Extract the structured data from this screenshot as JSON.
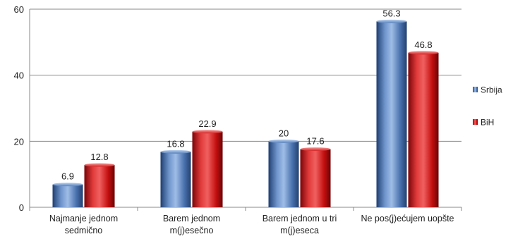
{
  "chart_data": {
    "type": "bar",
    "title": "",
    "xlabel": "",
    "ylabel": "",
    "ylim": [
      0,
      60
    ],
    "yticks": [
      0,
      20,
      40,
      60
    ],
    "grid": true,
    "legend_position": "right",
    "categories": [
      [
        "Najmanje jednom",
        "sedmično"
      ],
      [
        "Barem jednom",
        "m(j)esečno"
      ],
      [
        "Barem jednom u tri",
        "m(j)eseca"
      ],
      [
        "Ne pos(j)ećujem uopšte"
      ]
    ],
    "series": [
      {
        "name": "Srbija",
        "color": "#3d68a6",
        "values": [
          6.9,
          16.8,
          20,
          56.3
        ],
        "labels": [
          "6.9",
          "16.8",
          "20",
          "56.3"
        ]
      },
      {
        "name": "BiH",
        "color": "#cc1416",
        "values": [
          12.8,
          22.9,
          17.6,
          46.8
        ],
        "labels": [
          "12.8",
          "22.9",
          "17.6",
          "46.8"
        ]
      }
    ]
  }
}
